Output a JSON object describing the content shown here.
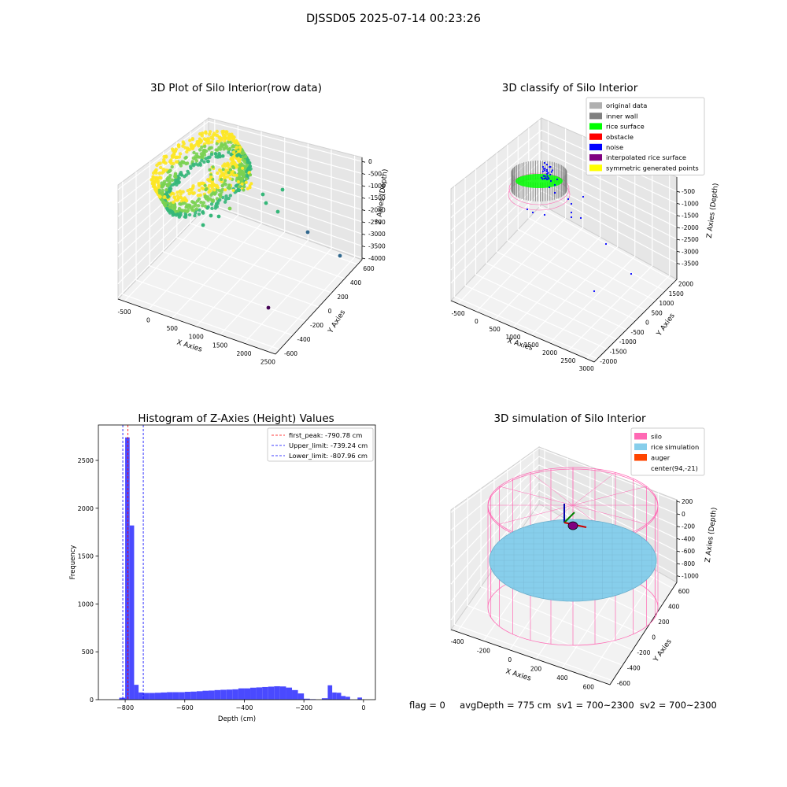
{
  "figure_title": "DJSSD05 2025-07-14 00:23:26",
  "status": {
    "flag": "flag = 0",
    "avg_depth": "avgDepth = 775 cm",
    "sv1": "sv1 = 700~2300",
    "sv2": "sv2 = 700~2300"
  },
  "chart_data": [
    {
      "id": "raw",
      "type": "scatter3d",
      "title": "3D Plot of Silo Interior(row data)",
      "xlabel": "X Axies",
      "ylabel": "Y Axies",
      "zlabel": "Z Axies (Depth)",
      "x_ticks": [
        -500,
        0,
        500,
        1000,
        1500,
        2000,
        2500
      ],
      "y_ticks": [
        -600,
        -400,
        -200,
        0,
        200,
        400,
        600
      ],
      "z_ticks": [
        0,
        -500,
        -1000,
        -1500,
        -2000,
        -2500,
        -3000,
        -3500,
        -4000
      ],
      "colormap": [
        "#440154",
        "#31688e",
        "#35b779",
        "#7ad151",
        "#fde725"
      ]
    },
    {
      "id": "classify",
      "type": "scatter3d",
      "title": "3D classify of Silo Interior",
      "xlabel": "X Axies",
      "ylabel": "Y Axies",
      "zlabel": "Z Axies (Depth)",
      "x_ticks": [
        -500,
        0,
        500,
        1000,
        1500,
        2000,
        2500,
        3000
      ],
      "y_ticks": [
        -2000,
        -1500,
        -1000,
        -500,
        0,
        500,
        1000,
        1500,
        2000
      ],
      "z_ticks": [
        -500,
        -1000,
        -1500,
        -2000,
        -2500,
        -3000,
        -3500
      ],
      "legend": [
        {
          "label": "original data",
          "color": "#b0b0b0"
        },
        {
          "label": "inner wall",
          "color": "#808080"
        },
        {
          "label": "rice surface",
          "color": "#00ff00"
        },
        {
          "label": "obstacle",
          "color": "#ff0000"
        },
        {
          "label": "noise",
          "color": "#0000ff"
        },
        {
          "label": "interpolated rice surface",
          "color": "#800080"
        },
        {
          "label": "symmetric generated points",
          "color": "#ffff00"
        }
      ],
      "legend_loc": "upper right"
    },
    {
      "id": "hist",
      "type": "bar",
      "title": "Histogram of Z-Axies (Height) Values",
      "xlabel": "Depth (cm)",
      "ylabel": "Frequency",
      "xlim": [
        -890,
        40
      ],
      "ylim": [
        0,
        2870
      ],
      "x_ticks": [
        -800,
        -600,
        -400,
        -200,
        0
      ],
      "y_ticks": [
        0,
        500,
        1000,
        1500,
        2000,
        2500
      ],
      "bar_color": "#4a4aff",
      "bins": [
        {
          "x0": -820,
          "x1": -800,
          "count": 20
        },
        {
          "x0": -800,
          "x1": -785,
          "count": 2740
        },
        {
          "x0": -785,
          "x1": -770,
          "count": 1820
        },
        {
          "x0": -770,
          "x1": -755,
          "count": 155
        },
        {
          "x0": -755,
          "x1": -740,
          "count": 75
        },
        {
          "x0": -740,
          "x1": -720,
          "count": 70
        },
        {
          "x0": -720,
          "x1": -700,
          "count": 70
        },
        {
          "x0": -700,
          "x1": -680,
          "count": 72
        },
        {
          "x0": -680,
          "x1": -660,
          "count": 75
        },
        {
          "x0": -660,
          "x1": -640,
          "count": 78
        },
        {
          "x0": -640,
          "x1": -620,
          "count": 78
        },
        {
          "x0": -620,
          "x1": -600,
          "count": 78
        },
        {
          "x0": -600,
          "x1": -580,
          "count": 82
        },
        {
          "x0": -580,
          "x1": -560,
          "count": 84
        },
        {
          "x0": -560,
          "x1": -540,
          "count": 88
        },
        {
          "x0": -540,
          "x1": -520,
          "count": 93
        },
        {
          "x0": -520,
          "x1": -500,
          "count": 95
        },
        {
          "x0": -500,
          "x1": -480,
          "count": 100
        },
        {
          "x0": -480,
          "x1": -460,
          "count": 103
        },
        {
          "x0": -460,
          "x1": -440,
          "count": 105
        },
        {
          "x0": -440,
          "x1": -420,
          "count": 108
        },
        {
          "x0": -420,
          "x1": -400,
          "count": 118
        },
        {
          "x0": -400,
          "x1": -380,
          "count": 118
        },
        {
          "x0": -380,
          "x1": -360,
          "count": 125
        },
        {
          "x0": -360,
          "x1": -340,
          "count": 128
        },
        {
          "x0": -340,
          "x1": -320,
          "count": 132
        },
        {
          "x0": -320,
          "x1": -300,
          "count": 136
        },
        {
          "x0": -300,
          "x1": -280,
          "count": 140
        },
        {
          "x0": -280,
          "x1": -260,
          "count": 138
        },
        {
          "x0": -260,
          "x1": -240,
          "count": 126
        },
        {
          "x0": -240,
          "x1": -220,
          "count": 100
        },
        {
          "x0": -220,
          "x1": -200,
          "count": 65
        },
        {
          "x0": -200,
          "x1": -180,
          "count": 10
        },
        {
          "x0": -180,
          "x1": -160,
          "count": 5
        },
        {
          "x0": -140,
          "x1": -120,
          "count": 15
        },
        {
          "x0": -120,
          "x1": -105,
          "count": 150
        },
        {
          "x0": -105,
          "x1": -90,
          "count": 75
        },
        {
          "x0": -90,
          "x1": -75,
          "count": 72
        },
        {
          "x0": -75,
          "x1": -60,
          "count": 38
        },
        {
          "x0": -60,
          "x1": -45,
          "count": 30
        },
        {
          "x0": -20,
          "x1": -5,
          "count": 22
        }
      ],
      "vlines": [
        {
          "label": "first_peak: -790.78 cm",
          "x": -790.78,
          "color": "#ff0000"
        },
        {
          "label": "Upper_limit: -739.24 cm",
          "x": -739.24,
          "color": "#0000ff"
        },
        {
          "label": "Lower_limit: -807.96 cm",
          "x": -807.96,
          "color": "#0000ff"
        }
      ],
      "legend_loc": "upper right"
    },
    {
      "id": "sim",
      "type": "surface3d",
      "title": "3D simulation of Silo Interior",
      "xlabel": "X Axies",
      "ylabel": "Y Axies",
      "zlabel": "Z Axies (Depth)",
      "x_ticks": [
        -400,
        -200,
        0,
        200,
        400,
        600
      ],
      "y_ticks": [
        -600,
        -400,
        -200,
        0,
        200,
        400,
        600
      ],
      "z_ticks": [
        200,
        0,
        -200,
        -400,
        -600,
        -800,
        -1000
      ],
      "legend": [
        {
          "label": "silo",
          "color": "#ff69b4"
        },
        {
          "label": "rice simulation",
          "color": "#87ceeb"
        },
        {
          "label": "auger",
          "color": "#ff4500"
        },
        {
          "label": "center(94,-21)",
          "color": "#ffffff"
        }
      ],
      "legend_loc": "upper right"
    }
  ]
}
